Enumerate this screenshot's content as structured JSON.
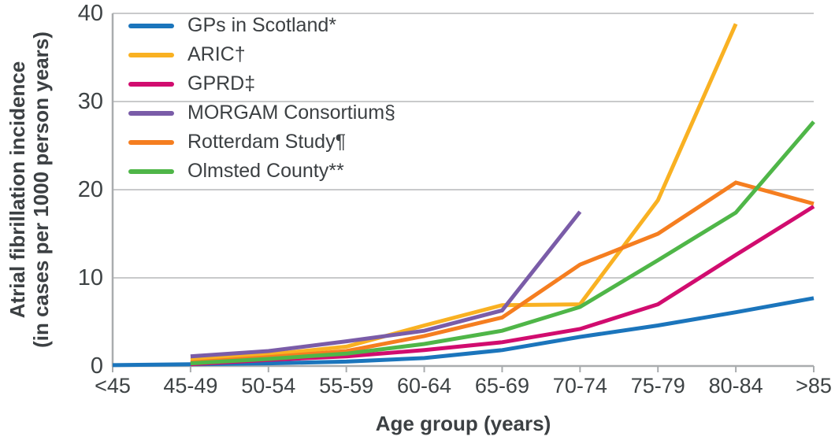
{
  "chart_data": {
    "type": "line",
    "title": "",
    "xlabel": "Age group (years)",
    "ylabel": "Atrial fibrillation incidence (in cases per 1000 person years)",
    "ylabel_lines": [
      "Atrial fibrillation incidence",
      "(in cases per 1000 person years)"
    ],
    "categories": [
      "<45",
      "45-49",
      "50-54",
      "55-59",
      "60-64",
      "65-69",
      "70-74",
      "75-79",
      "80-84",
      ">85"
    ],
    "yticks": [
      0,
      10,
      20,
      30,
      40
    ],
    "ylim": [
      0,
      40
    ],
    "grid": true,
    "legend_position": "top-left",
    "units": "cases per 1000 person years",
    "series": [
      {
        "name": "GPs in Scotland*",
        "color": "#1b75bc",
        "values": [
          0.1,
          0.2,
          0.3,
          0.5,
          0.9,
          1.8,
          3.3,
          4.6,
          6.1,
          7.7
        ]
      },
      {
        "name": "ARIC†",
        "color": "#f9b122",
        "values": [
          null,
          0.7,
          1.3,
          2.2,
          4.6,
          6.9,
          7.0,
          18.8,
          38.8,
          null
        ]
      },
      {
        "name": "GPRD‡",
        "color": "#d10c6f",
        "values": [
          null,
          0.2,
          0.7,
          1.1,
          1.8,
          2.7,
          4.2,
          7.0,
          12.6,
          18.1
        ]
      },
      {
        "name": "MORGAM Consortium§",
        "color": "#7a5ca8",
        "values": [
          null,
          1.1,
          1.7,
          2.8,
          4.0,
          6.3,
          17.5,
          null,
          null,
          null
        ]
      },
      {
        "name": "Rotterdam Study¶",
        "color": "#f57e20",
        "values": [
          null,
          0.4,
          1.0,
          1.7,
          3.4,
          5.5,
          11.5,
          15.0,
          20.8,
          18.4
        ]
      },
      {
        "name": "Olmsted County**",
        "color": "#4fb648",
        "values": [
          null,
          0.3,
          0.8,
          1.4,
          2.5,
          4.0,
          6.7,
          12.0,
          17.4,
          27.7
        ]
      }
    ]
  },
  "axis_style": {
    "text_color": "#3e4345",
    "grid_color": "#c9cacb",
    "axis_color": "#a9acae"
  }
}
